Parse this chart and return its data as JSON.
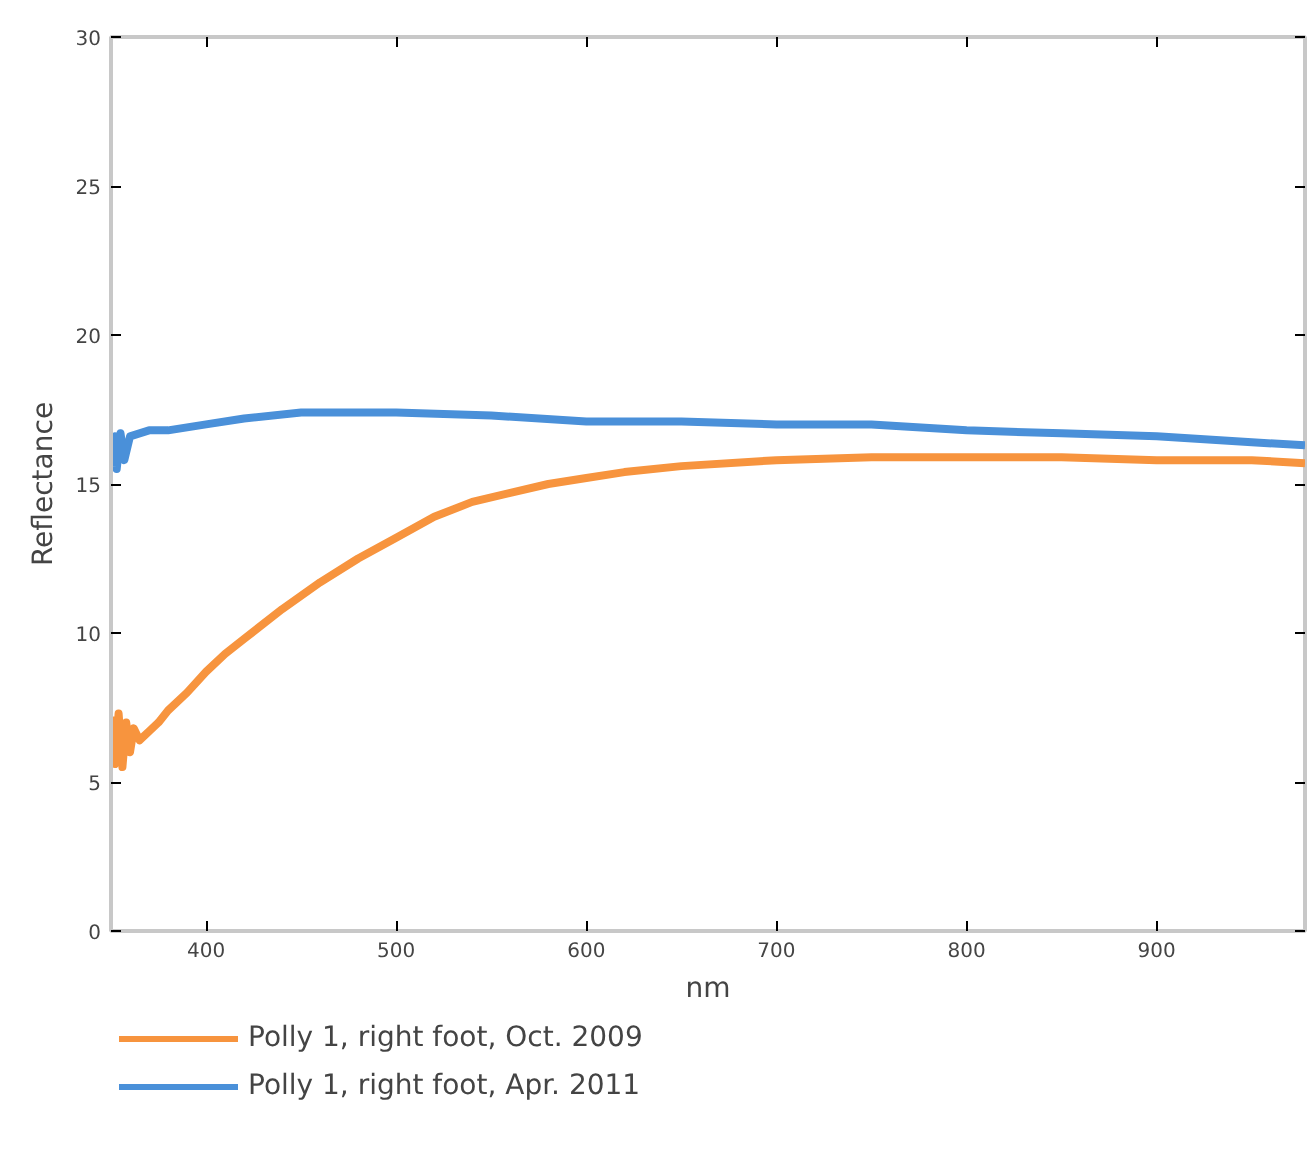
{
  "chart_data": {
    "type": "line",
    "xlabel": "nm",
    "ylabel": "Reflectance",
    "xlim": [
      350,
      978
    ],
    "ylim": [
      0,
      30
    ],
    "xticks": [
      400,
      500,
      600,
      700,
      800,
      900
    ],
    "yticks": [
      0,
      5,
      10,
      15,
      20,
      25,
      30
    ],
    "grid": false,
    "legend": "bottom left",
    "series": [
      {
        "name": "Polly 1, right foot, Oct. 2009",
        "color": "#f7943e",
        "x": [
          351,
          352,
          354,
          356,
          358,
          360,
          362,
          365,
          370,
          375,
          380,
          390,
          400,
          410,
          420,
          440,
          460,
          480,
          500,
          520,
          540,
          560,
          580,
          600,
          620,
          650,
          700,
          750,
          800,
          850,
          900,
          950,
          978
        ],
        "values": [
          7.2,
          5.6,
          7.3,
          5.5,
          7.0,
          6.0,
          6.8,
          6.4,
          6.7,
          7.0,
          7.4,
          8.0,
          8.7,
          9.3,
          9.8,
          10.8,
          11.7,
          12.5,
          13.2,
          13.9,
          14.4,
          14.7,
          15.0,
          15.2,
          15.4,
          15.6,
          15.8,
          15.9,
          15.9,
          15.9,
          15.8,
          15.8,
          15.7
        ]
      },
      {
        "name": "Polly 1, right foot, Apr. 2011",
        "color": "#4a90d9",
        "x": [
          351,
          352,
          353,
          355,
          357,
          360,
          365,
          370,
          380,
          400,
          420,
          450,
          480,
          500,
          550,
          600,
          650,
          700,
          750,
          800,
          850,
          900,
          950,
          978
        ],
        "values": [
          15.6,
          16.6,
          15.5,
          16.7,
          15.8,
          16.6,
          16.7,
          16.8,
          16.8,
          17.0,
          17.2,
          17.4,
          17.4,
          17.4,
          17.3,
          17.1,
          17.1,
          17.0,
          17.0,
          16.8,
          16.7,
          16.6,
          16.4,
          16.3
        ]
      }
    ]
  }
}
